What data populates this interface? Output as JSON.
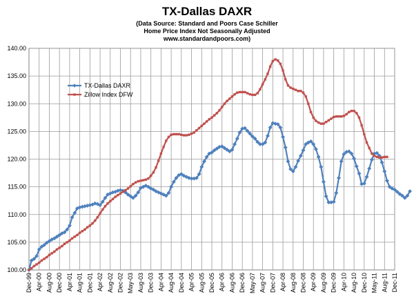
{
  "chart_data": {
    "type": "line",
    "title": "TX-Dallas DAXR",
    "subtitle_lines": [
      "(Data Source: Standard and Poors Case Schiller",
      "Home Price Index Not Seasonally Adjusted",
      "www.standardandpoors.com)"
    ],
    "xlabel": "",
    "ylabel": "",
    "ylim": [
      100,
      140
    ],
    "yticks": [
      "100.00",
      "105.00",
      "110.00",
      "115.00",
      "120.00",
      "125.00",
      "130.00",
      "135.00",
      "140.00"
    ],
    "xticks": [
      "Dec-99",
      "Apr-00",
      "Aug-00",
      "Dec-00",
      "Apr-01",
      "Aug-01",
      "Dec-01",
      "Apr-02",
      "Aug-02",
      "Dec-02",
      "May-03",
      "Aug-03",
      "Dec-03",
      "Apr-04",
      "Aug-04",
      "Dec-04",
      "Apr-05",
      "Aug-05",
      "Dec-05",
      "Apr-06",
      "Aug-06",
      "Dec-06",
      "May-07",
      "Aug-07",
      "Dec-07",
      "Apr-08",
      "Aug-08",
      "Dec-08",
      "Apr-09",
      "Aug-09",
      "Dec-09",
      "Apr-10",
      "Aug-10",
      "Dec-10",
      "May-11",
      "Aug-11",
      "Dec-11"
    ],
    "x_start_month": "Dec-99",
    "grid": true,
    "legend_position": "upper-left inside",
    "series": [
      {
        "name": "TX-Dallas DAXR",
        "color": "#4F81BD",
        "marker": "diamond",
        "values": [
          100.0,
          101.7,
          102.0,
          102.5,
          103.7,
          104.2,
          104.5,
          104.9,
          105.2,
          105.5,
          105.7,
          106.0,
          106.3,
          106.6,
          106.8,
          107.3,
          108.0,
          109.5,
          110.3,
          111.1,
          111.3,
          111.4,
          111.5,
          111.6,
          111.7,
          111.8,
          112.0,
          111.9,
          111.7,
          112.3,
          113.0,
          113.6,
          113.8,
          114.0,
          114.1,
          114.3,
          114.4,
          114.3,
          114.0,
          113.6,
          113.3,
          113.0,
          113.4,
          114.0,
          114.8,
          115.0,
          115.2,
          115.0,
          114.7,
          114.5,
          114.2,
          114.0,
          113.8,
          113.6,
          113.4,
          113.9,
          115.0,
          115.9,
          116.6,
          117.1,
          117.3,
          117.0,
          116.8,
          116.6,
          116.5,
          116.5,
          116.6,
          117.3,
          118.6,
          119.6,
          120.4,
          121.0,
          121.2,
          121.6,
          121.9,
          122.2,
          122.3,
          122.0,
          121.7,
          121.4,
          121.7,
          122.7,
          123.7,
          124.8,
          125.5,
          125.6,
          125.1,
          124.6,
          124.1,
          123.7,
          123.1,
          122.7,
          122.7,
          123.0,
          124.2,
          125.7,
          126.5,
          126.4,
          126.3,
          125.7,
          124.0,
          122.1,
          119.6,
          118.2,
          117.8,
          118.6,
          119.7,
          120.6,
          121.6,
          122.7,
          123.0,
          123.2,
          122.7,
          121.8,
          120.4,
          118.6,
          115.9,
          113.3,
          112.2,
          112.2,
          112.3,
          113.9,
          116.6,
          119.6,
          120.9,
          121.3,
          121.4,
          121.0,
          120.1,
          118.7,
          117.4,
          115.5,
          115.6,
          116.8,
          118.3,
          119.9,
          121.0,
          121.1,
          120.6,
          119.4,
          117.8,
          116.1,
          115.0,
          114.7,
          114.5,
          114.1,
          113.7,
          113.4,
          113.0,
          113.4,
          114.2
        ]
      },
      {
        "name": "Zillow Index DFW",
        "color": "#C0504D",
        "marker": "square",
        "values": [
          100.0,
          100.3,
          100.7,
          101.0,
          101.3,
          101.7,
          102.0,
          102.3,
          102.7,
          103.0,
          103.3,
          103.7,
          104.0,
          104.3,
          104.7,
          105.0,
          105.3,
          105.7,
          106.0,
          106.3,
          106.7,
          107.0,
          107.3,
          107.7,
          108.0,
          108.4,
          108.9,
          109.5,
          110.2,
          110.9,
          111.5,
          112.0,
          112.4,
          112.8,
          113.2,
          113.5,
          113.8,
          114.1,
          114.4,
          114.7,
          115.1,
          115.5,
          115.8,
          116.0,
          116.1,
          116.2,
          116.3,
          116.5,
          117.0,
          117.6,
          118.5,
          119.7,
          121.0,
          122.2,
          123.3,
          124.0,
          124.4,
          124.5,
          124.5,
          124.5,
          124.4,
          124.3,
          124.3,
          124.4,
          124.6,
          124.8,
          125.2,
          125.6,
          126.0,
          126.4,
          126.8,
          127.2,
          127.5,
          127.9,
          128.3,
          128.8,
          129.4,
          130.0,
          130.5,
          130.9,
          131.3,
          131.7,
          132.0,
          132.1,
          132.1,
          132.1,
          131.9,
          131.7,
          131.6,
          131.6,
          131.9,
          132.6,
          133.5,
          134.4,
          135.4,
          136.7,
          137.7,
          138.0,
          137.8,
          137.2,
          136.0,
          134.4,
          133.3,
          132.9,
          132.7,
          132.5,
          132.3,
          132.3,
          132.0,
          131.3,
          130.0,
          128.5,
          127.5,
          126.9,
          126.6,
          126.4,
          126.4,
          126.7,
          127.0,
          127.3,
          127.6,
          127.7,
          127.7,
          127.7,
          127.8,
          128.1,
          128.5,
          128.7,
          128.7,
          128.3,
          127.5,
          126.1,
          124.5,
          123.0,
          122.0,
          121.0,
          120.6,
          120.4,
          120.3,
          120.3,
          120.4,
          120.4
        ]
      }
    ]
  }
}
